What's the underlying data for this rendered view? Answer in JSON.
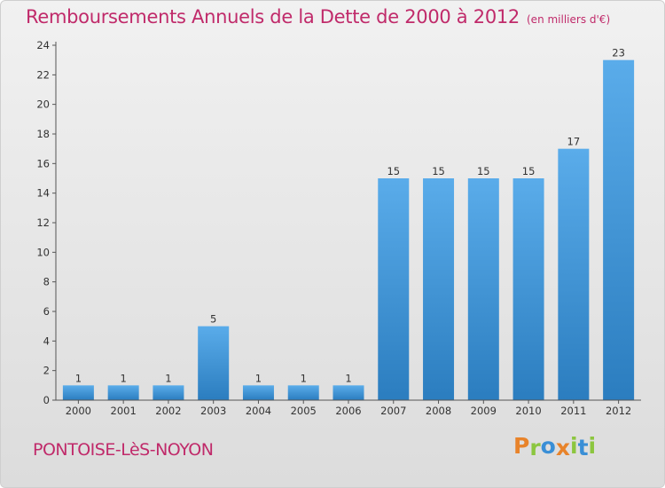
{
  "title": "Remboursements Annuels de la Dette de 2000 à 2012",
  "unit_note": "(en milliers d'€)",
  "commune": "PONTOISE-LèS-NOYON",
  "brand": {
    "letters": [
      {
        "char": "P",
        "color": "#e8832a"
      },
      {
        "char": "r",
        "color": "#8cc63f"
      },
      {
        "char": "o",
        "color": "#3a8fd6"
      },
      {
        "char": "x",
        "color": "#e8832a"
      },
      {
        "char": "i",
        "color": "#8cc63f"
      },
      {
        "char": "t",
        "color": "#3a8fd6"
      },
      {
        "char": "i",
        "color": "#8cc63f"
      }
    ]
  },
  "chart_data": {
    "type": "bar",
    "categories": [
      "2000",
      "2001",
      "2002",
      "2003",
      "2004",
      "2005",
      "2006",
      "2007",
      "2008",
      "2009",
      "2010",
      "2011",
      "2012"
    ],
    "values": [
      1,
      1,
      1,
      5,
      1,
      1,
      1,
      15,
      15,
      15,
      15,
      17,
      23
    ],
    "ylim": [
      0,
      24
    ],
    "yticks": [
      0,
      2,
      4,
      6,
      8,
      10,
      12,
      14,
      16,
      18,
      20,
      22,
      24
    ],
    "grid": false,
    "bar_color_top": "#5aacea",
    "bar_color_bottom": "#2b7dbf",
    "title_color": "#c02a6a"
  }
}
